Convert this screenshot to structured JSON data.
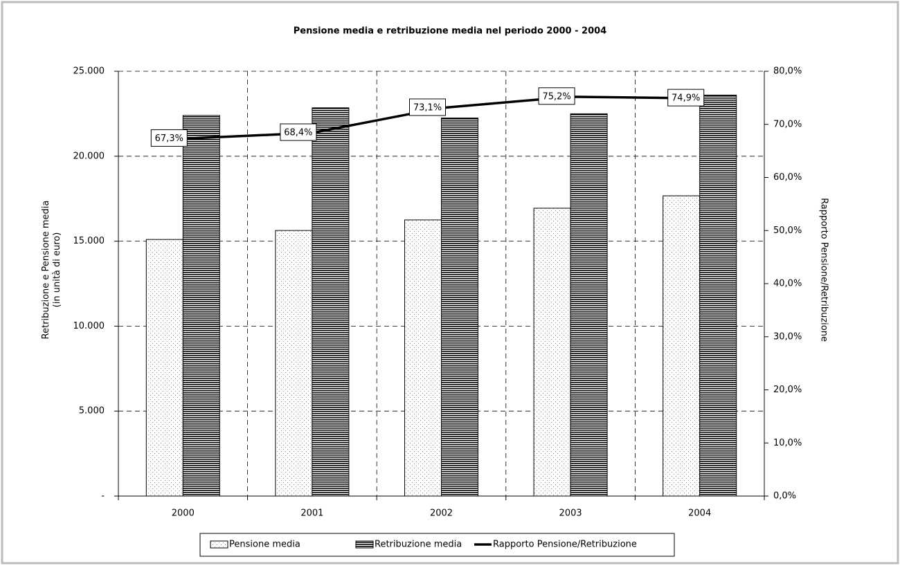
{
  "chart_data": {
    "type": "bar-line",
    "title": "Pensione media e retribuzione media nel periodo 2000 - 2004",
    "ylabel": [
      "Retribuzione e Pensione media",
      "(in unità di euro)"
    ],
    "y2label": "Rapporto Pensione/Retribuzione",
    "categories": [
      "2000",
      "2001",
      "2002",
      "2003",
      "2004"
    ],
    "series": [
      {
        "name": "Pensione media",
        "color": "#000000",
        "pattern": "dots",
        "values": [
          15100,
          15630,
          16250,
          16940,
          17670
        ]
      },
      {
        "name": "Retribuzione media",
        "color": "#000000",
        "pattern": "horizontal-lines",
        "values": [
          22400,
          22850,
          22250,
          22500,
          23600
        ]
      },
      {
        "name": "Rapporto Pensione/Retribuzione",
        "color": "#000000",
        "axis": "y2",
        "values": [
          67.3,
          68.4,
          73.1,
          75.2,
          74.9
        ],
        "value_labels": [
          "67,3%",
          "68,4%",
          "73,1%",
          "75,2%",
          "74,9%"
        ]
      }
    ],
    "ylim": [
      0,
      25000
    ],
    "yticks": [
      {
        "value": 0,
        "label": "-"
      },
      {
        "value": 5000,
        "label": "5.000"
      },
      {
        "value": 10000,
        "label": "10.000"
      },
      {
        "value": 15000,
        "label": "15.000"
      },
      {
        "value": 20000,
        "label": "20.000"
      },
      {
        "value": 25000,
        "label": "25.000"
      }
    ],
    "y2lim": [
      0,
      80
    ],
    "y2ticks": [
      {
        "value": 0,
        "label": "0,0%"
      },
      {
        "value": 10,
        "label": "10,0%"
      },
      {
        "value": 20,
        "label": "20,0%"
      },
      {
        "value": 30,
        "label": "30,0%"
      },
      {
        "value": 40,
        "label": "40,0%"
      },
      {
        "value": 50,
        "label": "50,0%"
      },
      {
        "value": 60,
        "label": "60,0%"
      },
      {
        "value": 70,
        "label": "70,0%"
      },
      {
        "value": 80,
        "label": "80,0%"
      }
    ],
    "grid": true,
    "legend": "bottom"
  }
}
